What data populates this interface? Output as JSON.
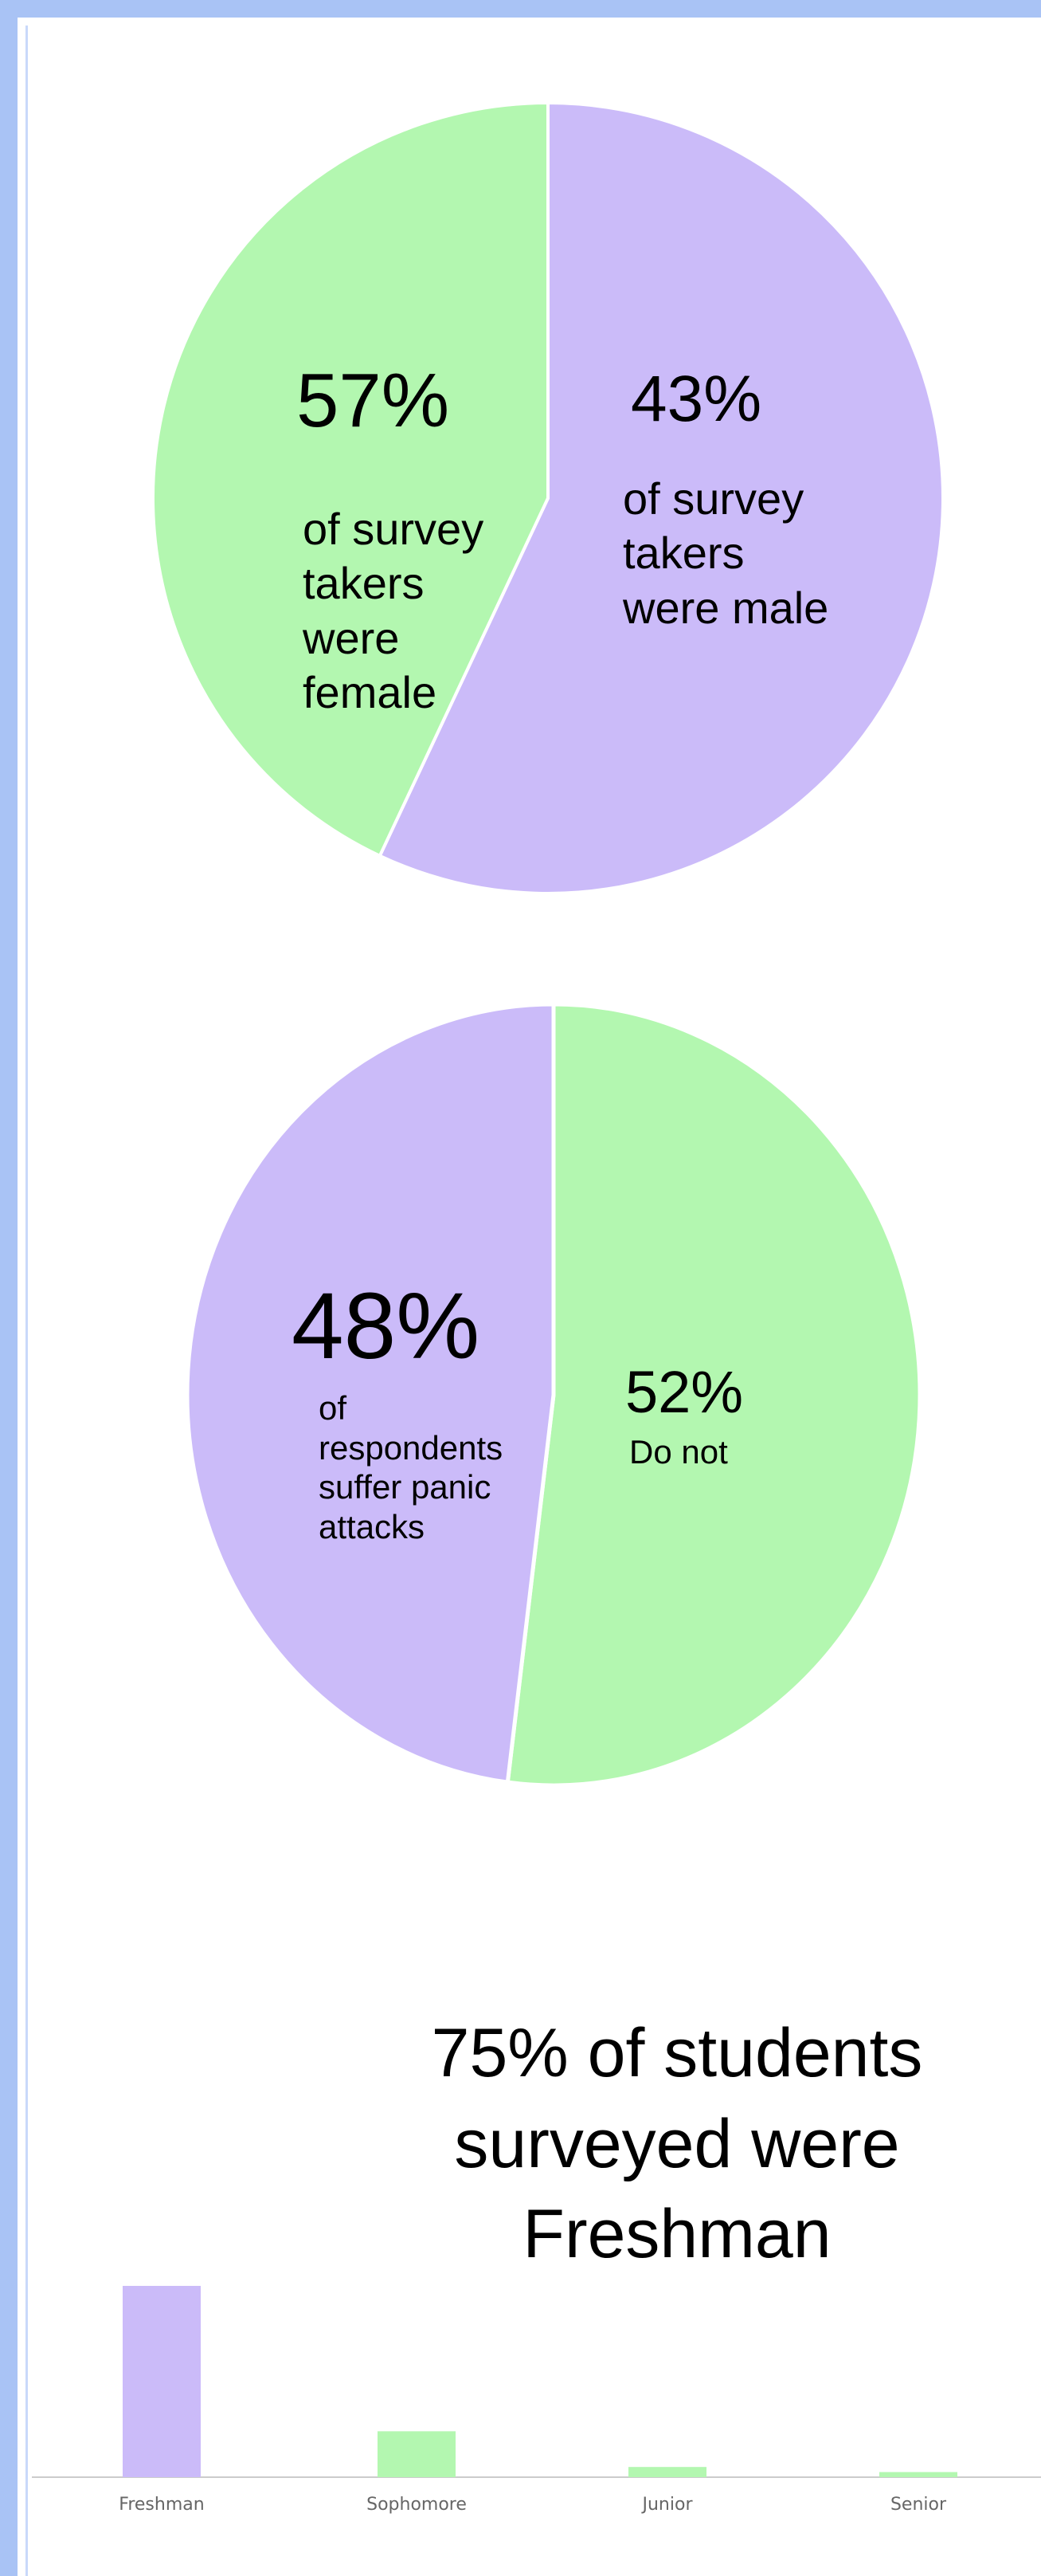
{
  "chart_data": [
    {
      "type": "pie",
      "slices": [
        {
          "label": "female",
          "value": 57,
          "color": "#cbbbf9"
        },
        {
          "label": "male",
          "value": 43,
          "color": "#b3f7b0"
        }
      ],
      "annotations": {
        "female_pct": "57%",
        "female_text": "of survey\ntakers\nwere\nfemale",
        "male_pct": "43%",
        "male_text": "of survey\ntakers\nwere male"
      }
    },
    {
      "type": "pie",
      "slices": [
        {
          "label": "suffer panic attacks",
          "value": 48,
          "color": "#cbbbf9"
        },
        {
          "label": "Do not",
          "value": 52,
          "color": "#b3f7b0"
        }
      ],
      "annotations": {
        "yes_pct": "48%",
        "yes_text": "of\nrespondents\nsuffer panic\nattacks",
        "no_pct": "52%",
        "no_text": "Do not"
      }
    },
    {
      "type": "bar",
      "title": "75% of students\nsurveyed were\nFreshman",
      "categories": [
        "Freshman",
        "Sophomore",
        "Junior",
        "Senior"
      ],
      "values": [
        75,
        18,
        4,
        2
      ],
      "colors": [
        "#cbbbf9",
        "#b3f7b0",
        "#b3f7b0",
        "#b3f7b0"
      ],
      "xlabel": "",
      "ylabel": "",
      "grid": false
    }
  ]
}
